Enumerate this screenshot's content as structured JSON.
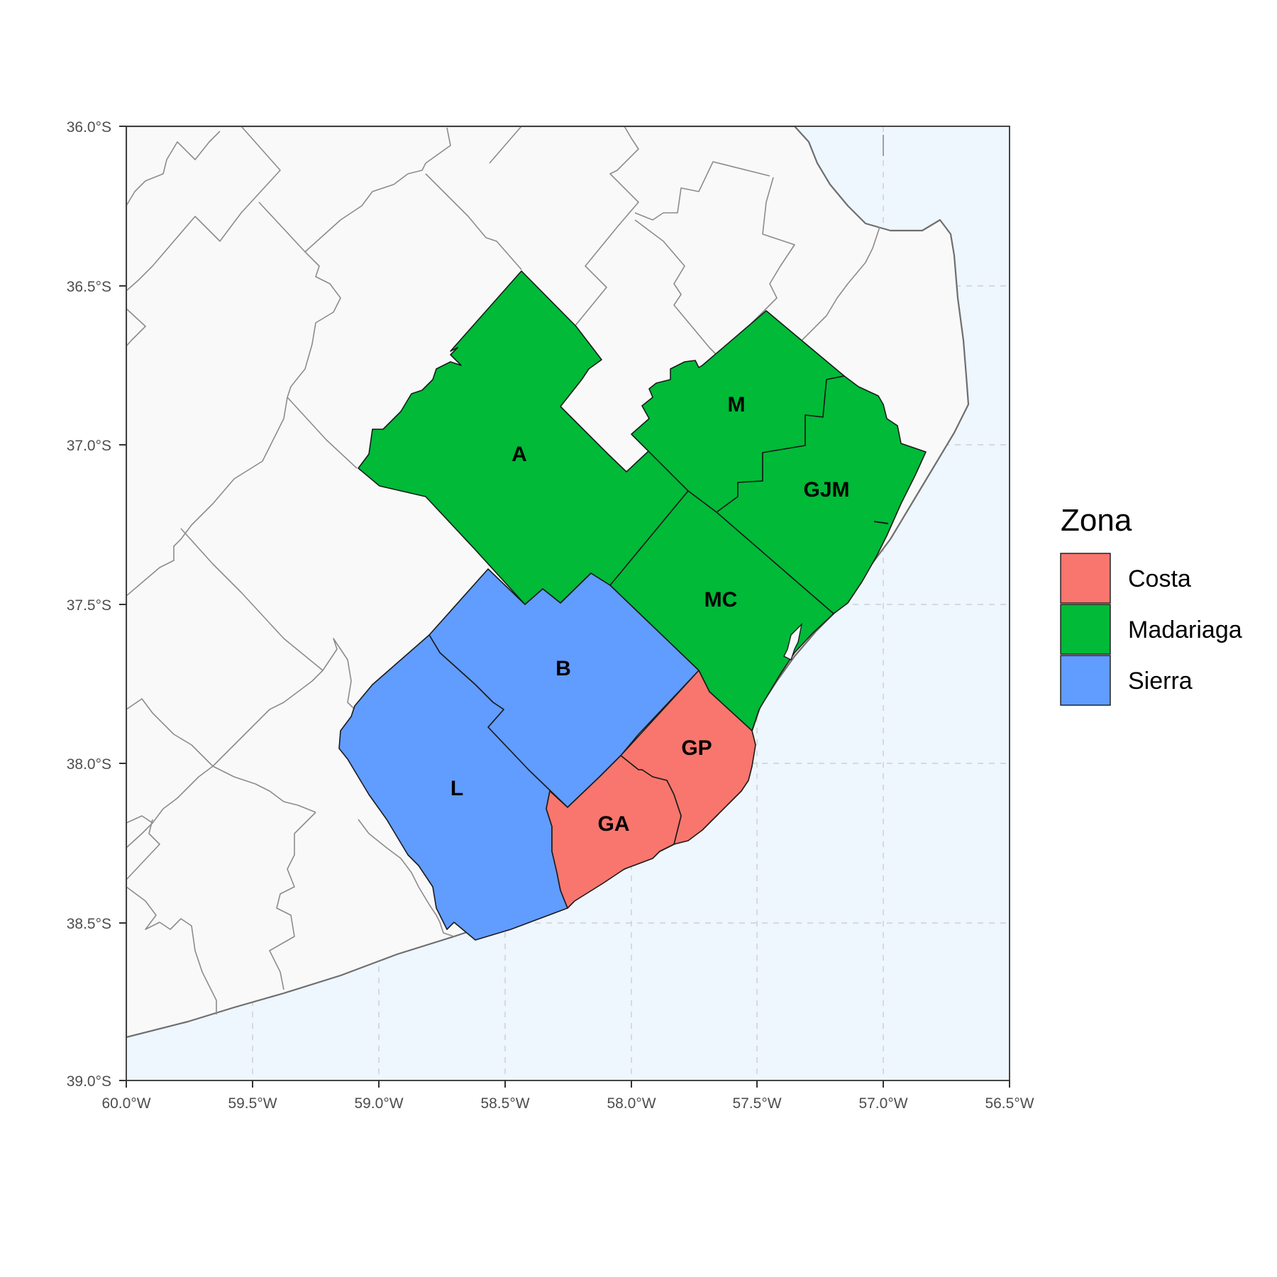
{
  "map": {
    "x_ticks": [
      "60.0°W",
      "59.5°W",
      "59.0°W",
      "58.5°W",
      "58.0°W",
      "57.5°W",
      "57.0°W",
      "56.5°W"
    ],
    "y_ticks": [
      "36.0°S",
      "36.5°S",
      "37.0°S",
      "37.5°S",
      "38.0°S",
      "38.5°S",
      "39.0°S"
    ],
    "colors": {
      "ocean": "#eef6fe",
      "land": "#f9f9f9",
      "grid": "#c8c8c8",
      "Costa": "#f8766d",
      "Madariaga": "#00ba38",
      "Sierra": "#619cff"
    },
    "regions": [
      {
        "label": "A",
        "zona": "Madariaga"
      },
      {
        "label": "M",
        "zona": "Madariaga"
      },
      {
        "label": "GJM",
        "zona": "Madariaga"
      },
      {
        "label": "MC",
        "zona": "Madariaga"
      },
      {
        "label": "B",
        "zona": "Sierra"
      },
      {
        "label": "L",
        "zona": "Sierra"
      },
      {
        "label": "GP",
        "zona": "Costa"
      },
      {
        "label": "GA",
        "zona": "Costa"
      }
    ]
  },
  "legend": {
    "title": "Zona",
    "items": [
      {
        "label": "Costa",
        "color": "#f8766d"
      },
      {
        "label": "Madariaga",
        "color": "#00ba38"
      },
      {
        "label": "Sierra",
        "color": "#619cff"
      }
    ]
  }
}
